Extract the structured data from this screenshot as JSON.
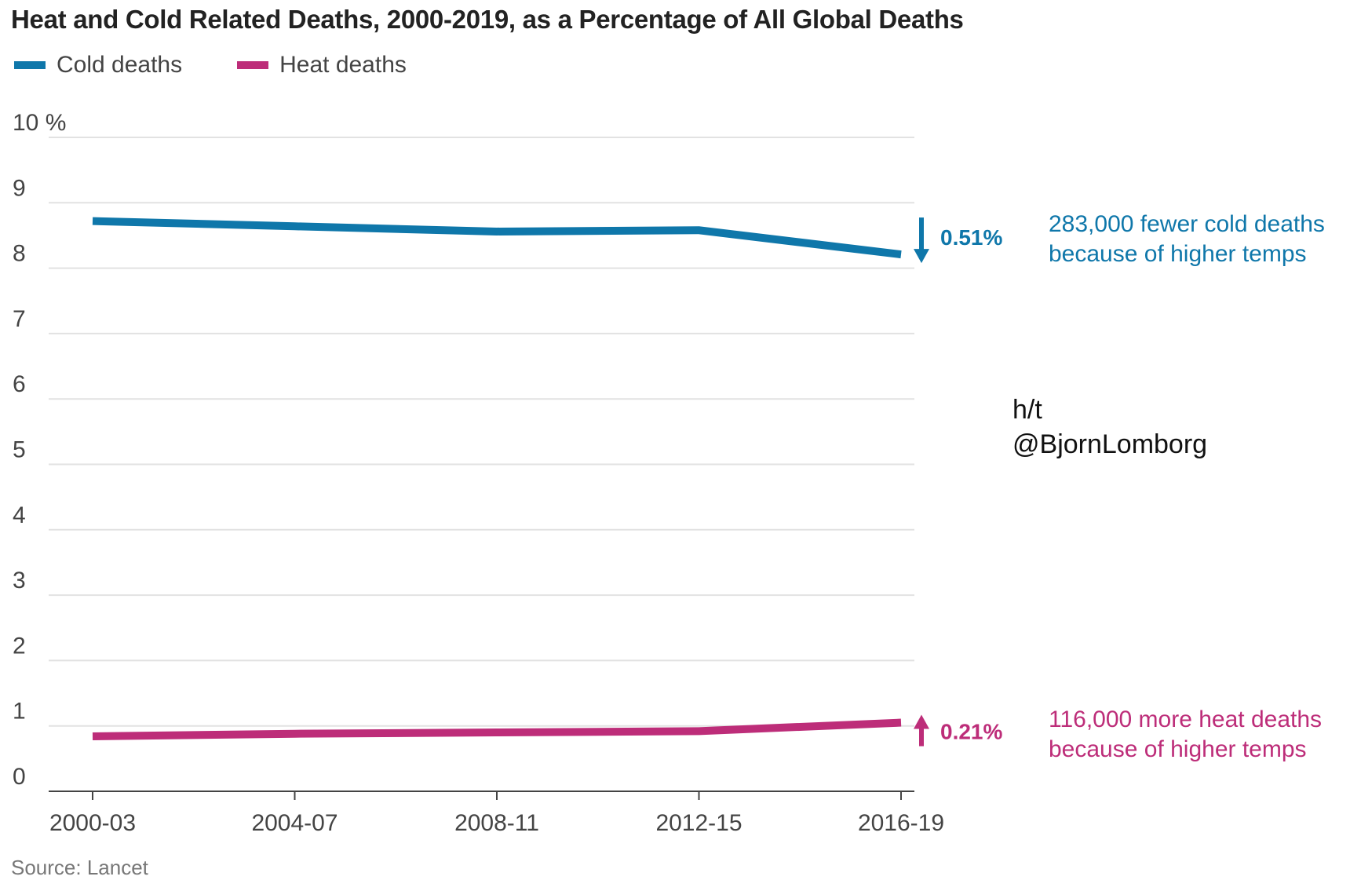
{
  "title": "Heat and Cold Related Deaths, 2000-2019, as a Percentage of All Global Deaths",
  "legend": [
    {
      "label": "Cold deaths",
      "color": "#0f77aa"
    },
    {
      "label": "Heat deaths",
      "color": "#bd2d79"
    }
  ],
  "chart_data": {
    "type": "line",
    "categories": [
      "2000-03",
      "2004-07",
      "2008-11",
      "2012-15",
      "2016-19"
    ],
    "series": [
      {
        "name": "Cold deaths",
        "color": "#0f77aa",
        "values": [
          8.72,
          8.64,
          8.56,
          8.58,
          8.21
        ]
      },
      {
        "name": "Heat deaths",
        "color": "#bd2d79",
        "values": [
          0.84,
          0.88,
          0.9,
          0.92,
          1.05
        ]
      }
    ],
    "y_ticks": [
      "10 %",
      "9",
      "8",
      "7",
      "6",
      "5",
      "4",
      "3",
      "2",
      "1",
      "0"
    ],
    "ylim": [
      0,
      10
    ],
    "grid": true,
    "change_labels": [
      {
        "series": "Cold deaths",
        "text": "0.51%",
        "direction": "down",
        "color": "#0f77aa"
      },
      {
        "series": "Heat deaths",
        "text": "0.21%",
        "direction": "up",
        "color": "#bd2d79"
      }
    ]
  },
  "annotations": {
    "cold_line1": "283,000 fewer cold deaths",
    "cold_line2": "because of higher temps",
    "heat_line1": "116,000 more heat deaths",
    "heat_line2": "because of higher temps"
  },
  "credit": {
    "line1": "h/t",
    "line2": "@BjornLomborg"
  },
  "source": "Source: Lancet"
}
